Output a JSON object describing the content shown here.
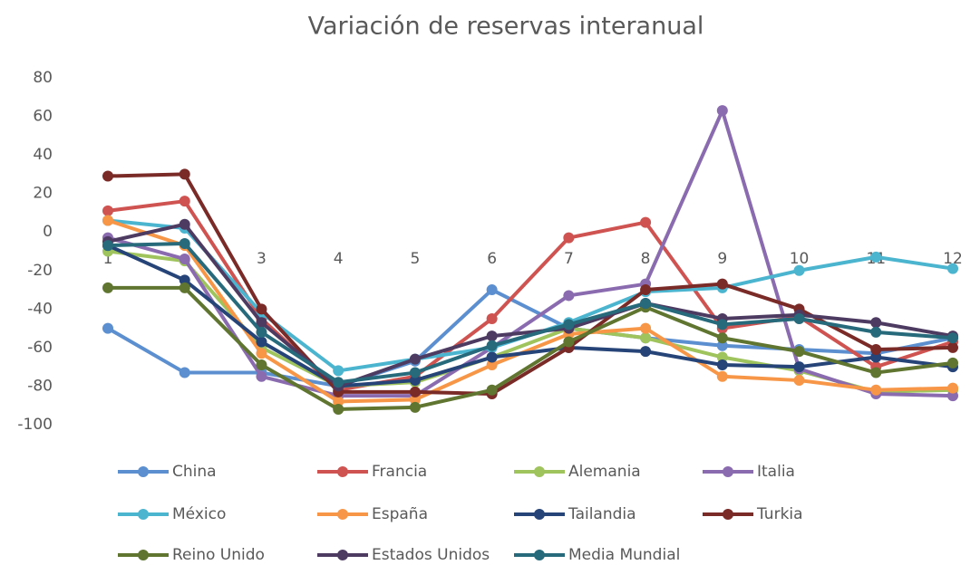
{
  "chart_data": {
    "type": "line",
    "title": "Variación de reservas interanual",
    "categories": [
      "1",
      null,
      "3",
      "4",
      "5",
      "6",
      "7",
      "8",
      "9",
      "10",
      "11",
      "12"
    ],
    "ylim": [
      -100,
      80
    ],
    "yticks": [
      -100,
      -80,
      -60,
      -40,
      -20,
      0,
      20,
      40,
      60,
      80
    ],
    "series": [
      {
        "name": "China",
        "color": "#5b8fd0",
        "values": [
          -50,
          -73,
          -73,
          -80,
          -67,
          -30,
          -50,
          -55,
          -59,
          -61,
          -63,
          -55
        ]
      },
      {
        "name": "Francia",
        "color": "#cf5350",
        "values": [
          11,
          16,
          -45,
          -82,
          -75,
          -45,
          -3,
          5,
          -50,
          -44,
          -70,
          -57
        ]
      },
      {
        "name": "Alemania",
        "color": "#9fc35d",
        "values": [
          -10,
          -15,
          -60,
          -80,
          -78,
          -65,
          -50,
          -55,
          -65,
          -72,
          -83,
          -82
        ]
      },
      {
        "name": "Italia",
        "color": "#8a6bb0",
        "values": [
          -3,
          -14,
          -75,
          -85,
          -85,
          -60,
          -33,
          -27,
          63,
          -71,
          -84,
          -85
        ]
      },
      {
        "name": "México",
        "color": "#4bb4cf",
        "values": [
          6,
          2,
          -42,
          -72,
          -66,
          -60,
          -47,
          -31,
          -29,
          -20,
          -13,
          -19
        ]
      },
      {
        "name": "España",
        "color": "#f79646",
        "values": [
          6,
          -7,
          -63,
          -88,
          -87,
          -69,
          -53,
          -50,
          -75,
          -77,
          -82,
          -81
        ]
      },
      {
        "name": "Tailandia",
        "color": "#264478",
        "values": [
          -7,
          -25,
          -57,
          -80,
          -77,
          -65,
          -60,
          -62,
          -69,
          -70,
          -65,
          -70
        ]
      },
      {
        "name": "Turkia",
        "color": "#7a2a27",
        "values": [
          29,
          30,
          -40,
          -83,
          -83,
          -84,
          -60,
          -30,
          -27,
          -40,
          -61,
          -60
        ]
      },
      {
        "name": "Reino Unido",
        "color": "#5f7530",
        "values": [
          -29,
          -29,
          -69,
          -92,
          -91,
          -82,
          -57,
          -39,
          -55,
          -62,
          -73,
          -68
        ]
      },
      {
        "name": "Estados Unidos",
        "color": "#4d3b62",
        "values": [
          -5,
          4,
          -47,
          -80,
          -66,
          -54,
          -50,
          -37,
          -45,
          -43,
          -47,
          -54
        ]
      },
      {
        "name": "Media Mundial",
        "color": "#276a7c",
        "values": [
          -7,
          -6,
          -52,
          -78,
          -73,
          -59,
          -48,
          -37,
          -48,
          -45,
          -52,
          -55
        ]
      }
    ]
  }
}
